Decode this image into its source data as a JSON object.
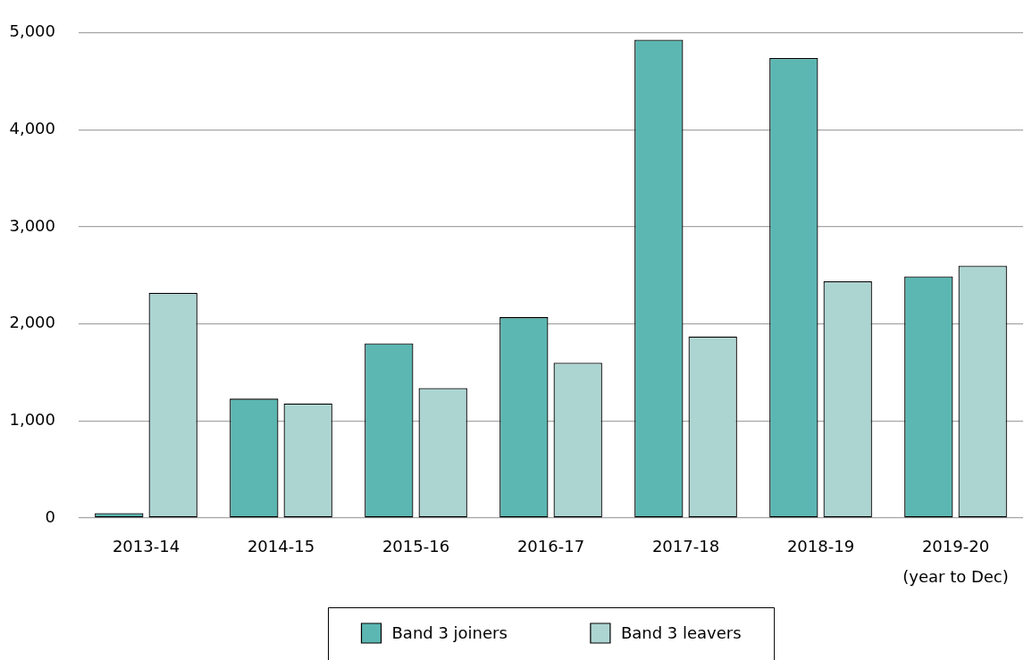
{
  "chart_data": {
    "type": "bar",
    "categories": [
      "2013-14",
      "2014-15",
      "2015-16",
      "2016-17",
      "2017-18",
      "2018-19",
      "2019-20\n(year to Dec)"
    ],
    "series": [
      {
        "name": "Band 3 joiners",
        "color": "#5cb7b2",
        "values": [
          50,
          1230,
          1800,
          2070,
          4930,
          4740,
          2490
        ]
      },
      {
        "name": "Band 3 leavers",
        "color": "#acd5d2",
        "values": [
          2320,
          1180,
          1340,
          1600,
          1870,
          2440,
          2600
        ]
      }
    ],
    "ylim": [
      0,
      5000
    ],
    "yticks": [
      0,
      {
        "value": 1000,
        "label": "1,000"
      },
      {
        "value": 2000,
        "label": "2,000"
      },
      {
        "value": 3000,
        "label": "3,000"
      },
      {
        "value": 4000,
        "label": "4,000"
      },
      {
        "value": 5000,
        "label": "5,000"
      }
    ],
    "grid": "y",
    "legend": "bottom"
  }
}
